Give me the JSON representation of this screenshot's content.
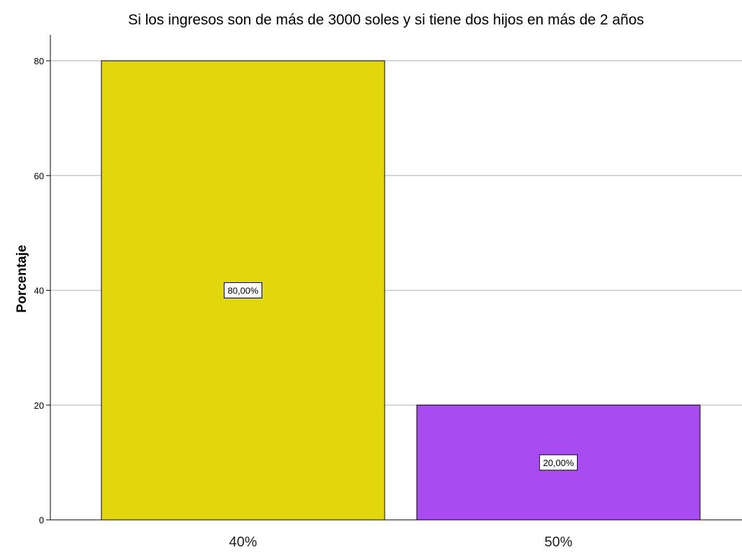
{
  "chart_data": {
    "type": "bar",
    "title": "Si los ingresos son de más de 3000 soles y si tiene dos hijos en más de 2 años",
    "xlabel": "",
    "ylabel": "Porcentaje",
    "categories": [
      "40%",
      "50%"
    ],
    "values": [
      80,
      20
    ],
    "data_labels": [
      "80,00%",
      "20,00%"
    ],
    "colors": [
      "#e2d60c",
      "#a84bf0"
    ],
    "ylim": [
      0,
      80
    ],
    "yticks": [
      0,
      20,
      40,
      60,
      80
    ],
    "grid": true,
    "legend": "none"
  }
}
